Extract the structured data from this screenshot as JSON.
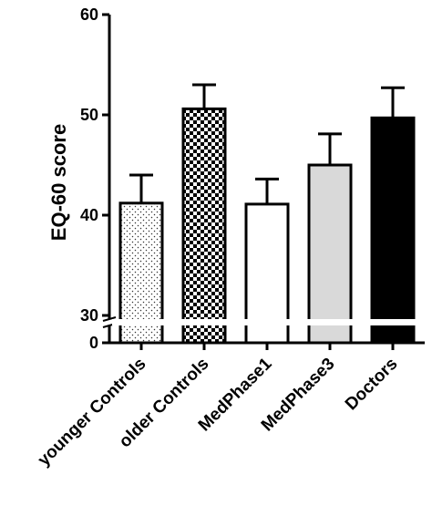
{
  "chart_data": {
    "type": "bar",
    "title": "",
    "xlabel": "",
    "ylabel": "EQ-60 score",
    "ylim": [
      0,
      60
    ],
    "axis_break": {
      "lower": [
        0,
        0
      ],
      "upper": [
        30,
        60
      ]
    },
    "yticks_upper": [
      "30",
      "40",
      "50",
      "60"
    ],
    "yticks_lower": [
      "0"
    ],
    "categories": [
      "younger Controls",
      "older Controls",
      "MedPhase1",
      "MedPhase3",
      "Doctors"
    ],
    "values": [
      41.2,
      50.6,
      41.1,
      45.0,
      49.7
    ],
    "error_upper": [
      2.8,
      2.4,
      2.5,
      3.1,
      3.0
    ],
    "fills": [
      "dotted",
      "checkered",
      "white",
      "light-gray",
      "black"
    ],
    "colors": {
      "axis": "#000000",
      "light_gray": "#d9d9d9",
      "black": "#000000",
      "white": "#ffffff"
    },
    "grid": false,
    "legend": "none"
  }
}
